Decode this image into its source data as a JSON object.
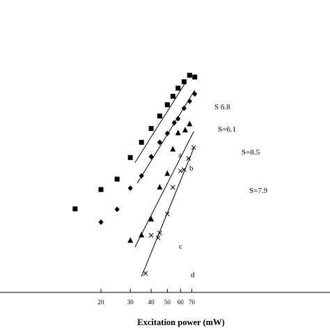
{
  "chart_data": {
    "type": "scatter",
    "title": "",
    "xlabel": "Excitation power (mW)",
    "ylabel": "",
    "x_scale": "log",
    "y_scale": "log",
    "xlim": [
      10.4,
      73
    ],
    "x_ticks": [
      20,
      30,
      40,
      50,
      60,
      70
    ],
    "x_tick_labels": [
      "20",
      "30",
      "40",
      "50",
      "60",
      "70"
    ],
    "grid": false,
    "legend": "none",
    "series": [
      {
        "key": "a",
        "label": "a",
        "marker": "square",
        "x": [
          14,
          20,
          25,
          30,
          35,
          40,
          45,
          50,
          54,
          58,
          63,
          68,
          73
        ],
        "y": [
          1.0,
          1.46,
          1.79,
          2.73,
          3.68,
          4.82,
          6.15,
          7.68,
          9.05,
          10.61,
          12.04,
          13.66,
          13.19
        ],
        "fit_label": "S 6.8",
        "fit": {
          "x": [
            32,
            64
          ],
          "y": [
            2.47,
            11.74
          ]
        }
      },
      {
        "key": "b",
        "label": "b",
        "marker": "diamond",
        "x": [
          20,
          25,
          30,
          35,
          40,
          45,
          50,
          55,
          58,
          63,
          68,
          73
        ],
        "y": [
          0.77,
          0.99,
          1.5,
          1.91,
          2.78,
          3.68,
          4.38,
          5.39,
          5.84,
          7.16,
          8.22,
          9.47
        ],
        "fit_label": "S=6.1",
        "fit": {
          "x": [
            33,
            73
          ],
          "y": [
            1.65,
            10.2
          ]
        }
      },
      {
        "key": "c",
        "label": "c",
        "marker": "triangle",
        "x": [
          30,
          35,
          40,
          45,
          50,
          54,
          58,
          64,
          68
        ],
        "y": [
          0.54,
          0.6,
          0.82,
          1.53,
          2.0,
          3.22,
          4.43,
          4.69,
          5.28
        ],
        "fit_label": "S=8.5",
        "fit": {
          "x": [
            32,
            72
          ],
          "y": [
            0.473,
            4.54
          ]
        }
      },
      {
        "key": "d",
        "label": "d",
        "marker": "cross",
        "x": [
          37,
          40,
          44,
          45,
          50,
          54,
          60,
          63,
          67,
          72
        ],
        "y": [
          0.283,
          0.595,
          0.567,
          0.623,
          0.904,
          1.52,
          2.1,
          2.16,
          2.68,
          3.32
        ],
        "fit_label": "S=7.9",
        "fit": {
          "x": [
            35,
            72
          ],
          "y": [
            0.266,
            3.28
          ]
        }
      }
    ]
  }
}
